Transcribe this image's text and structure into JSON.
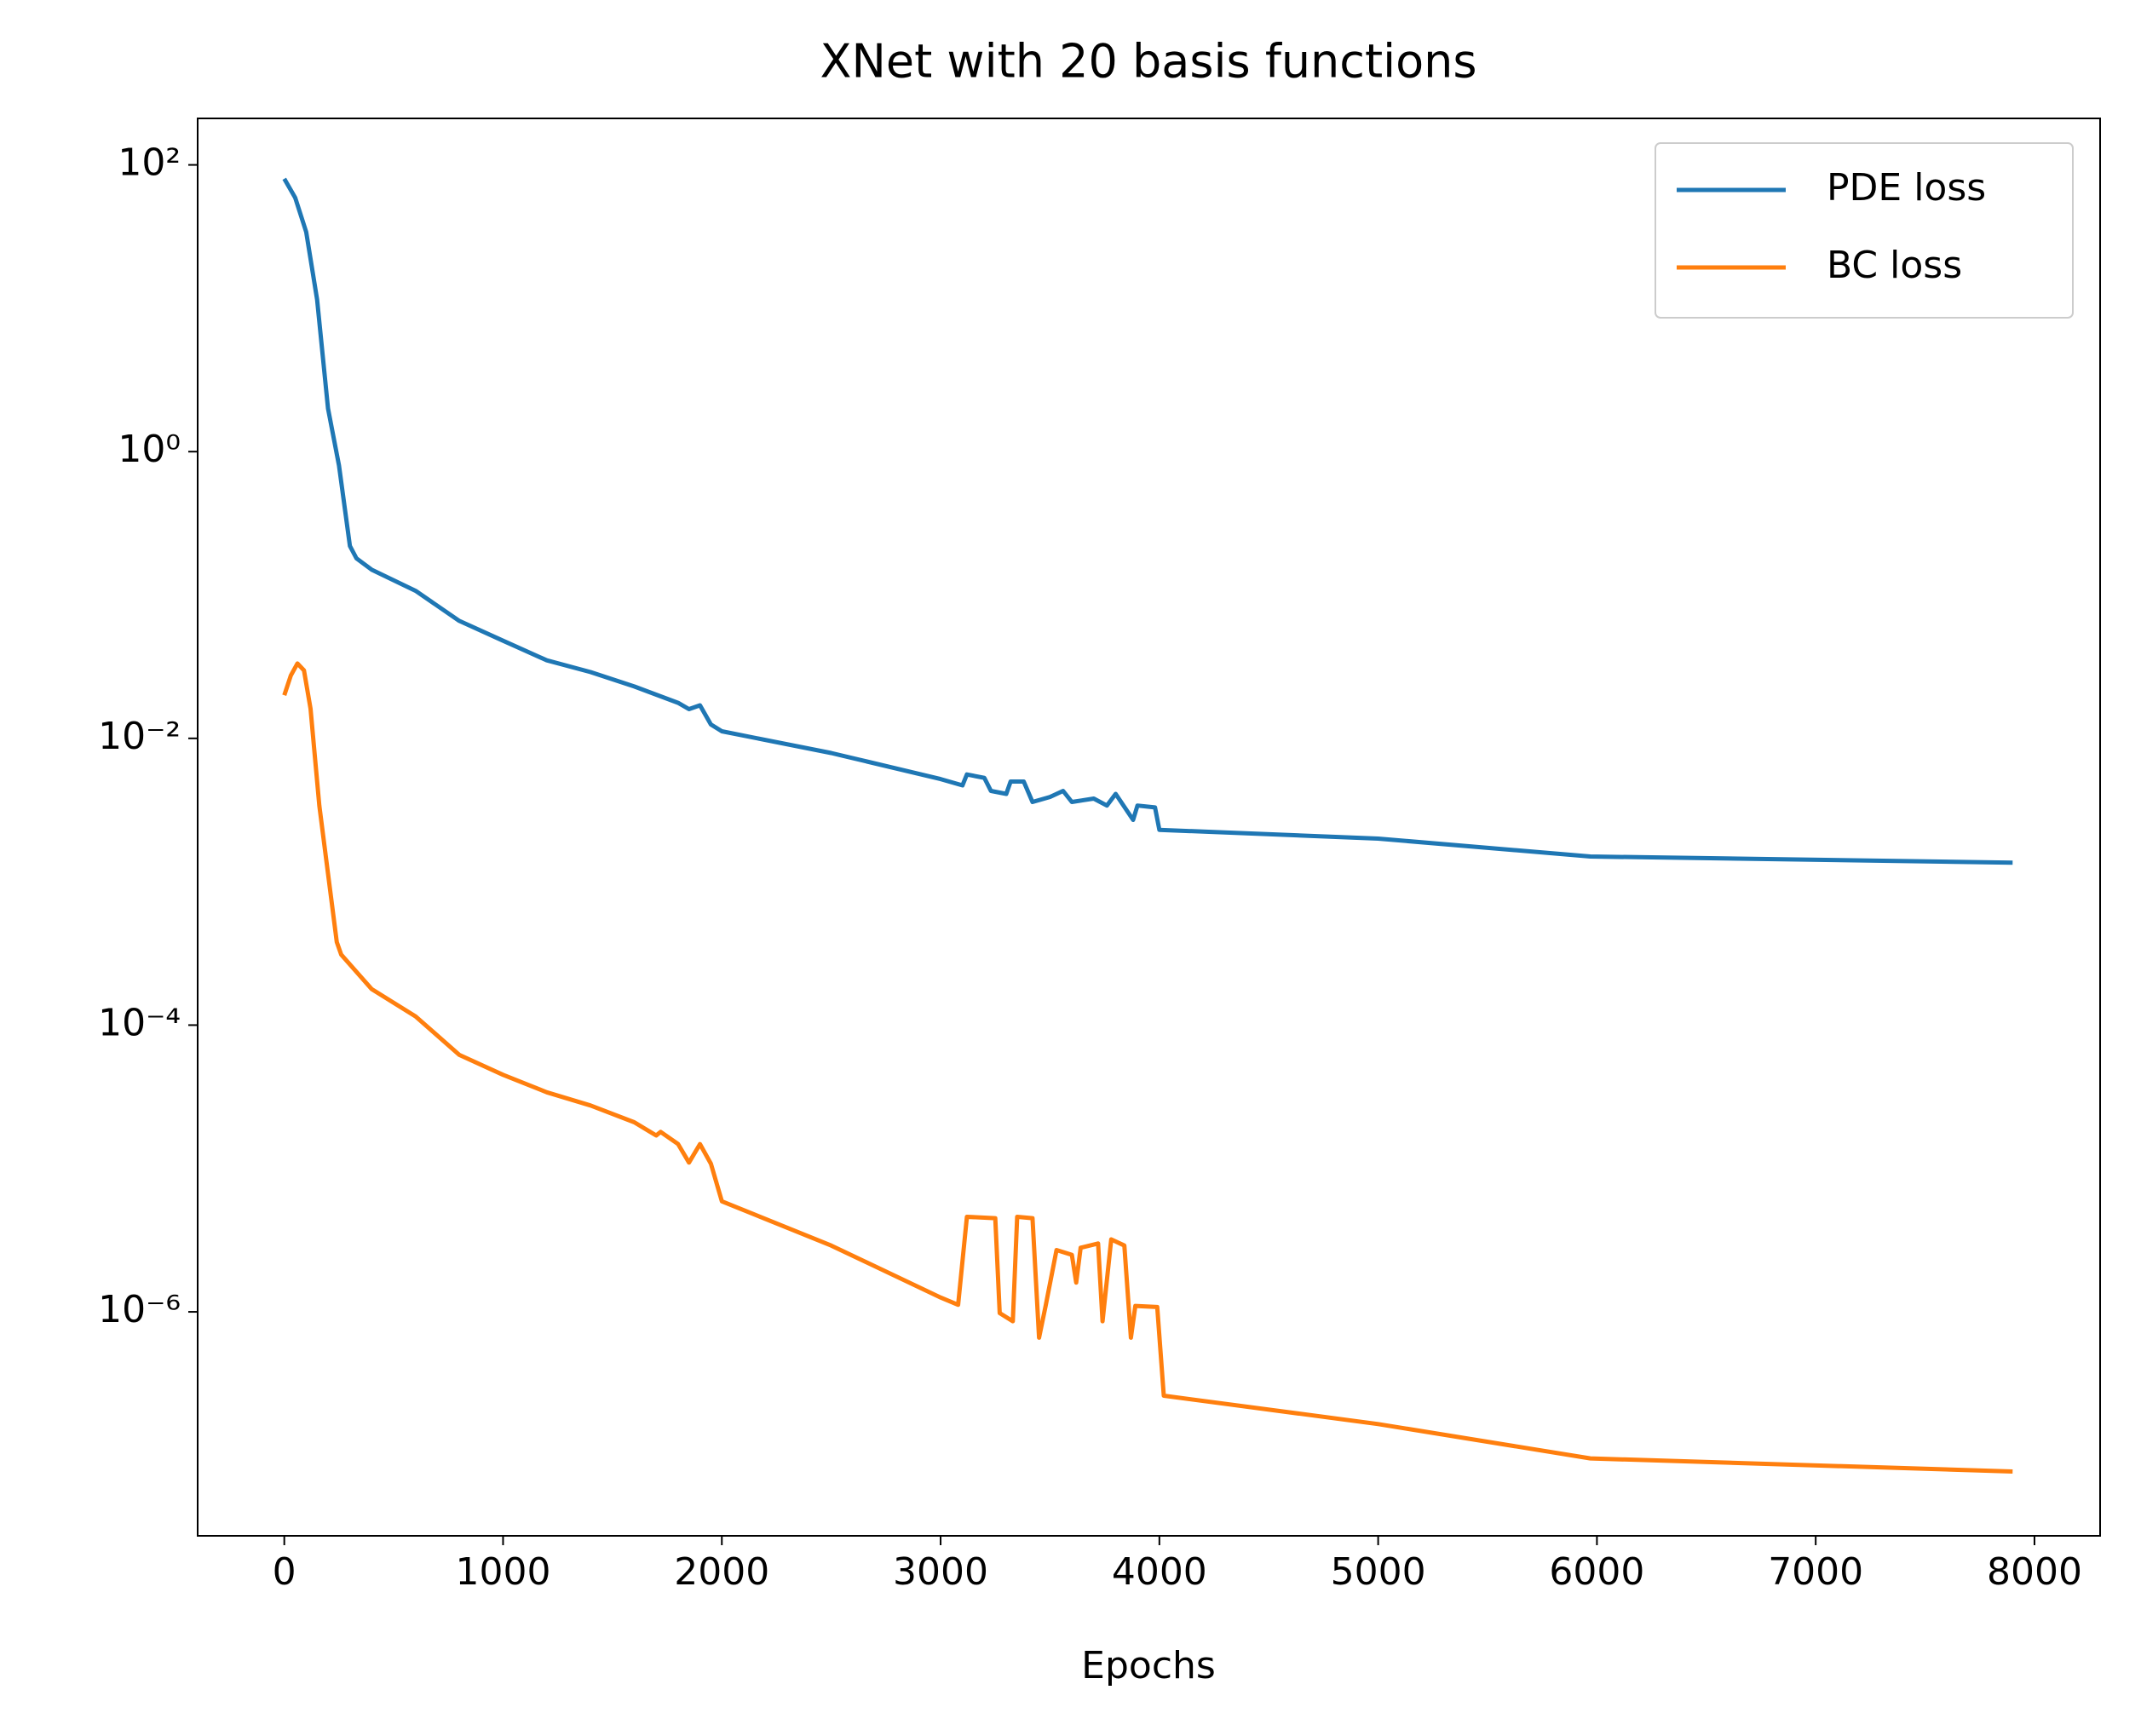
{
  "chart_data": {
    "type": "line",
    "title": "XNet with 20 basis functions",
    "x_label": "Epochs",
    "xlim": [
      -396,
      8300
    ],
    "xticks": [
      0,
      1000,
      2000,
      3000,
      4000,
      5000,
      6000,
      7000,
      8000
    ],
    "ylim": [
      211,
      2.74e-08
    ],
    "yscale": "log",
    "yticks": [
      {
        "value": 100,
        "label": "10²"
      },
      {
        "value": 1,
        "label": "10⁰"
      },
      {
        "value": 0.01,
        "label": "10⁻²"
      },
      {
        "value": 0.0001,
        "label": "10⁻⁴"
      },
      {
        "value": 1e-06,
        "label": "10⁻⁶"
      }
    ],
    "grid": false,
    "legend": "upper right",
    "series": [
      {
        "name": "PDE loss",
        "color": "#1f77b4",
        "x": [
          0,
          50,
          100,
          150,
          200,
          250,
          300,
          330,
          400,
          600,
          800,
          1000,
          1200,
          1400,
          1600,
          1800,
          1850,
          1900,
          1950,
          2000,
          2500,
          3000,
          3100,
          3120,
          3200,
          3230,
          3300,
          3320,
          3380,
          3420,
          3500,
          3560,
          3600,
          3700,
          3760,
          3800,
          3880,
          3900,
          3980,
          4000,
          5000,
          5970,
          7900
        ],
        "values": [
          80,
          59,
          34,
          11.5,
          2,
          0.8,
          0.22,
          0.18,
          0.15,
          0.107,
          0.066,
          0.048,
          0.035,
          0.029,
          0.023,
          0.0177,
          0.016,
          0.017,
          0.0125,
          0.0112,
          0.0079,
          0.0052,
          0.0047,
          0.0056,
          0.0053,
          0.0043,
          0.0041,
          0.005,
          0.005,
          0.0036,
          0.0039,
          0.0043,
          0.0036,
          0.0038,
          0.0034,
          0.0041,
          0.0027,
          0.0034,
          0.0033,
          0.0023,
          0.002,
          0.0015,
          0.00136
        ]
      },
      {
        "name": "BC loss",
        "color": "#ff7f0e",
        "x": [
          0,
          30,
          60,
          90,
          120,
          160,
          200,
          240,
          260,
          400,
          600,
          800,
          1000,
          1200,
          1400,
          1600,
          1700,
          1720,
          1800,
          1850,
          1900,
          1950,
          2000,
          2500,
          3000,
          3080,
          3120,
          3250,
          3270,
          3330,
          3350,
          3420,
          3450,
          3480,
          3530,
          3600,
          3620,
          3640,
          3720,
          3740,
          3780,
          3840,
          3870,
          3890,
          3990,
          4020,
          5000,
          5970,
          7900
        ],
        "values": [
          0.02,
          0.0275,
          0.0333,
          0.0298,
          0.0161,
          0.0034,
          0.00114,
          0.00038,
          0.00031,
          0.000178,
          0.000115,
          6.2e-05,
          4.5e-05,
          3.4e-05,
          2.75e-05,
          2.1e-05,
          1.7e-05,
          1.8e-05,
          1.48e-05,
          1.1e-05,
          1.48e-05,
          1.08e-05,
          5.9e-06,
          2.9e-06,
          1.26e-06,
          1.12e-06,
          4.6e-06,
          4.5e-06,
          9.8e-07,
          8.6e-07,
          4.6e-06,
          4.5e-06,
          6.6e-07,
          1.1e-06,
          2.7e-06,
          2.5e-06,
          1.6e-06,
          2.8e-06,
          3e-06,
          8.6e-07,
          3.2e-06,
          2.9e-06,
          6.6e-07,
          1.1e-06,
          1.08e-06,
          2.6e-07,
          1.65e-07,
          9.5e-08,
          7.7e-08
        ]
      }
    ]
  }
}
